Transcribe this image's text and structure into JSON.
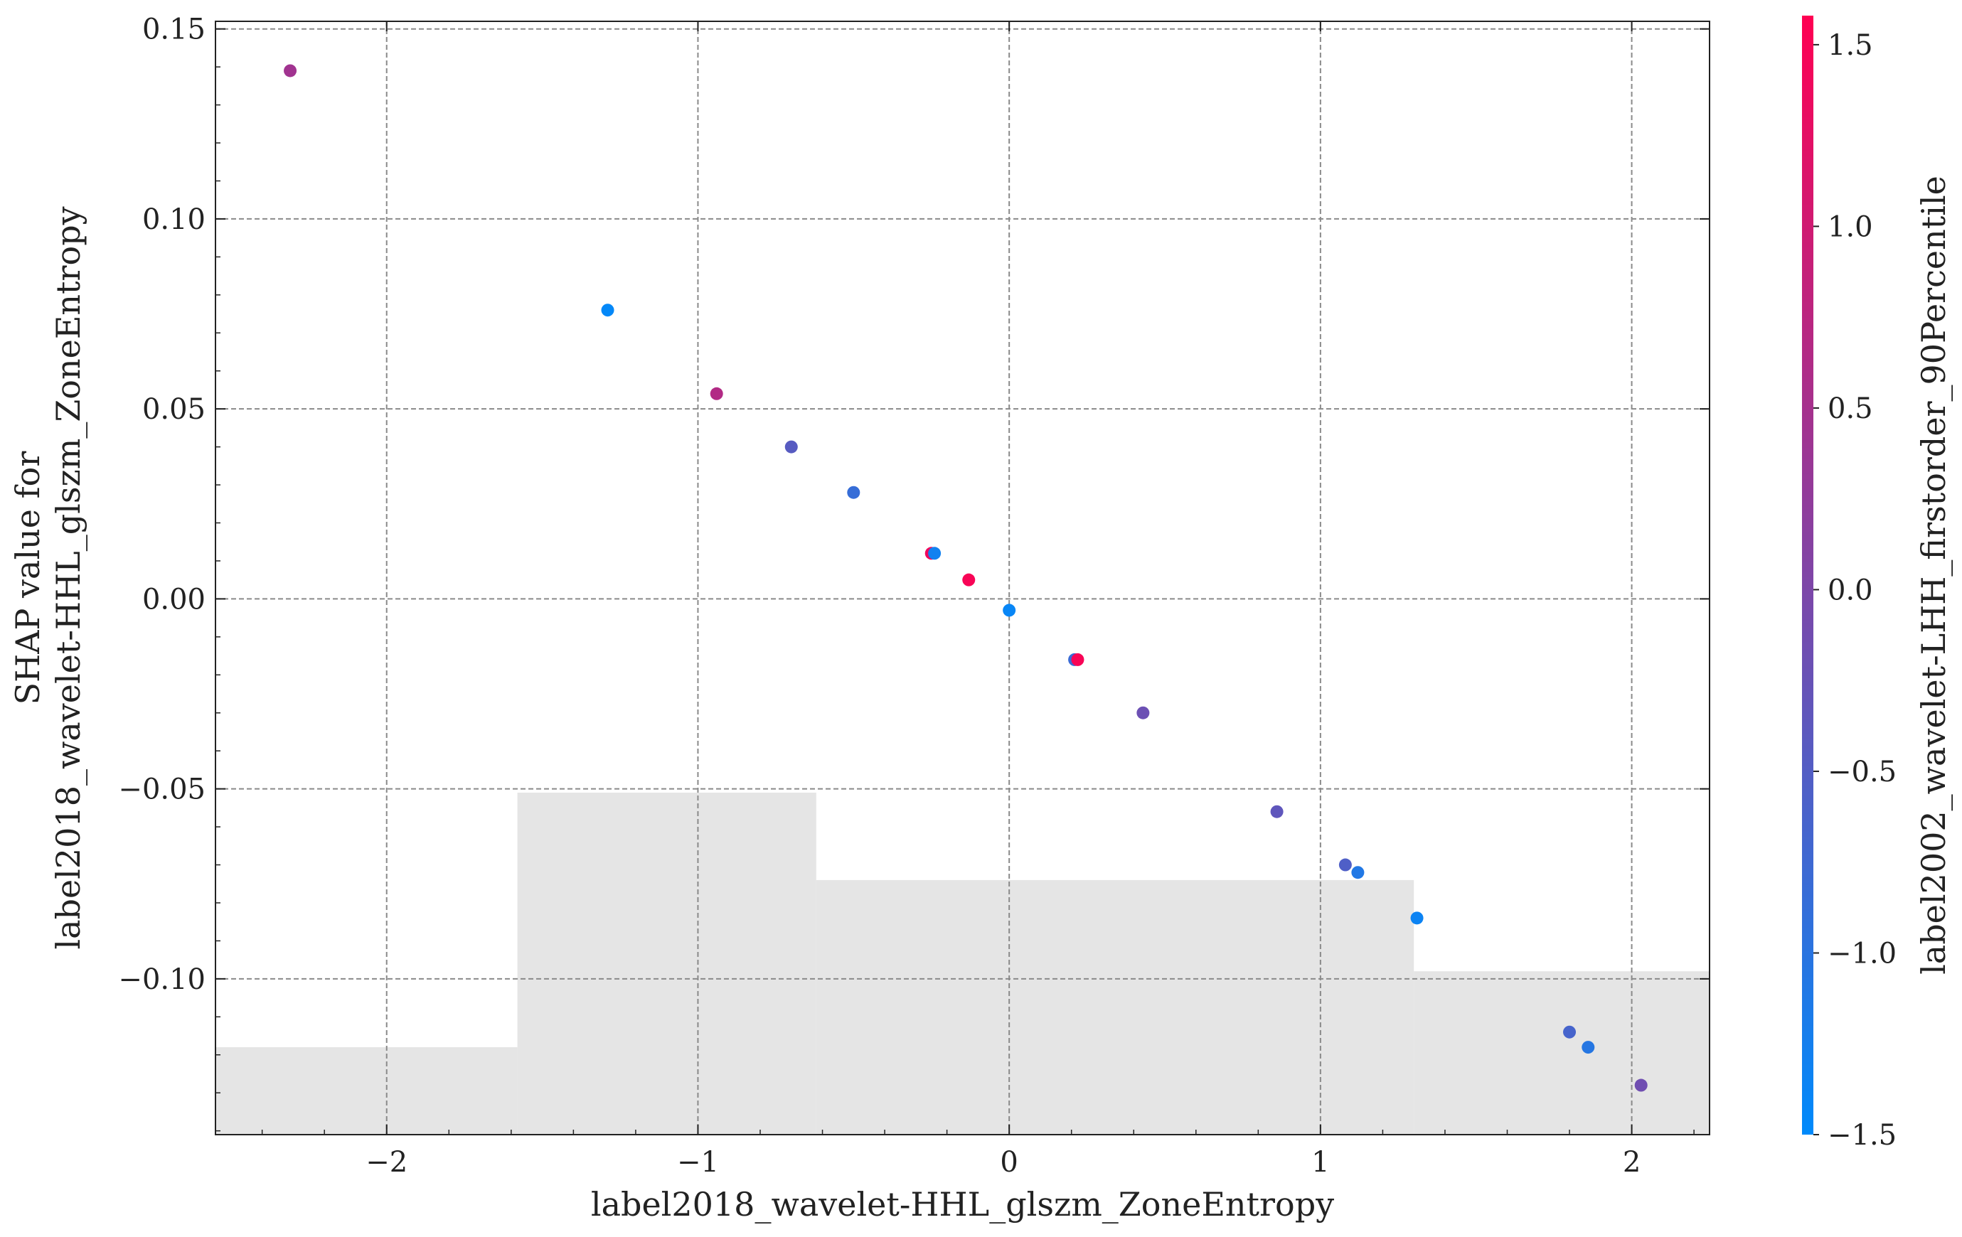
{
  "chart_data": {
    "type": "scatter",
    "xlabel": "label2018_wavelet-HHL_glszm_ZoneEntropy",
    "ylabel_lines": [
      "SHAP value for",
      "label2018_wavelet-HHL_glszm_ZoneEntropy"
    ],
    "colorbar_label": "label2002_wavelet-LHH_firstorder_90Percentile",
    "xlim": [
      -2.55,
      2.25
    ],
    "ylim": [
      -0.141,
      0.152
    ],
    "xticks": [
      -2,
      -1,
      0,
      1,
      2
    ],
    "xtick_labels": [
      "−2",
      "−1",
      "0",
      "1",
      "2"
    ],
    "yticks": [
      -0.1,
      -0.05,
      0.0,
      0.05,
      0.1,
      0.15
    ],
    "ytick_labels": [
      "−0.10",
      "−0.05",
      "0.00",
      "0.05",
      "0.10",
      "0.15"
    ],
    "colorbar_range": [
      -1.5,
      1.58
    ],
    "colorbar_ticks": [
      -1.5,
      -1.0,
      -0.5,
      0.0,
      0.5,
      1.0,
      1.5
    ],
    "colorbar_tick_labels": [
      "−1.5",
      "−1.0",
      "−0.5",
      "0.0",
      "0.5",
      "1.0",
      "1.5"
    ],
    "colormap": [
      "#008afb",
      "#ff0052"
    ],
    "grid": true,
    "histogram_steps": [
      {
        "x0": -2.55,
        "x1": -1.58,
        "y": -0.118
      },
      {
        "x0": -1.58,
        "x1": -0.62,
        "y": -0.051
      },
      {
        "x0": -0.62,
        "x1": 1.3,
        "y": -0.074
      },
      {
        "x0": 1.3,
        "x1": 2.25,
        "y": -0.098
      }
    ],
    "points": [
      {
        "x": -2.31,
        "y": 0.139,
        "c": 0.45
      },
      {
        "x": -1.29,
        "y": 0.076,
        "c": -1.45
      },
      {
        "x": -0.94,
        "y": 0.054,
        "c": 0.65
      },
      {
        "x": -0.7,
        "y": 0.04,
        "c": -0.45
      },
      {
        "x": -0.5,
        "y": 0.028,
        "c": -0.85
      },
      {
        "x": -0.25,
        "y": 0.012,
        "c": 1.4
      },
      {
        "x": -0.24,
        "y": 0.012,
        "c": -1.3
      },
      {
        "x": -0.13,
        "y": 0.005,
        "c": 1.5
      },
      {
        "x": 0.0,
        "y": -0.003,
        "c": -1.4
      },
      {
        "x": 0.21,
        "y": -0.016,
        "c": -0.8
      },
      {
        "x": 0.22,
        "y": -0.016,
        "c": 1.5
      },
      {
        "x": 0.43,
        "y": -0.03,
        "c": -0.2
      },
      {
        "x": 0.86,
        "y": -0.056,
        "c": -0.35
      },
      {
        "x": 1.08,
        "y": -0.07,
        "c": -0.55
      },
      {
        "x": 1.12,
        "y": -0.072,
        "c": -1.1
      },
      {
        "x": 1.31,
        "y": -0.084,
        "c": -1.35
      },
      {
        "x": 1.8,
        "y": -0.114,
        "c": -0.65
      },
      {
        "x": 1.86,
        "y": -0.118,
        "c": -1.05
      },
      {
        "x": 2.03,
        "y": -0.128,
        "c": -0.15
      }
    ]
  }
}
